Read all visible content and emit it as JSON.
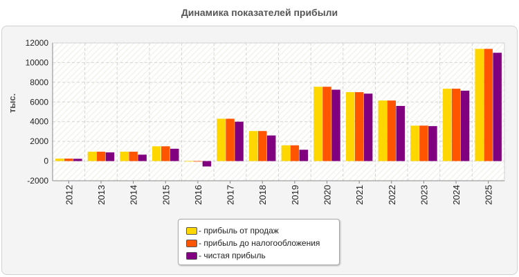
{
  "chart_data": {
    "type": "bar",
    "title": "Динамика показателей прибыли",
    "ylabel": "тыс.",
    "xlabel": "",
    "ylim": [
      -2000,
      12000
    ],
    "yticks": [
      -2000,
      0,
      2000,
      4000,
      6000,
      8000,
      10000,
      12000
    ],
    "grid": true,
    "legend_position": "bottom-center",
    "categories": [
      "2012",
      "2013",
      "2014",
      "2015",
      "2016",
      "2017",
      "2018",
      "2019",
      "2020",
      "2021",
      "2022",
      "2023",
      "2024",
      "2025"
    ],
    "series": [
      {
        "name": "- прибыль от продаж",
        "color": "#ffd700",
        "values": [
          250,
          950,
          950,
          1500,
          -50,
          4300,
          3050,
          1600,
          7550,
          7000,
          6150,
          3600,
          7350,
          11400
        ]
      },
      {
        "name": "- прибыль до налогообложения",
        "color": "#ff5500",
        "values": [
          250,
          950,
          950,
          1500,
          -50,
          4300,
          3050,
          1600,
          7550,
          7000,
          6150,
          3600,
          7350,
          11400
        ]
      },
      {
        "name": "- чистая прибыль",
        "color": "#800080",
        "values": [
          230,
          880,
          650,
          1250,
          -550,
          4000,
          2600,
          1150,
          7250,
          6850,
          5600,
          3550,
          7150,
          11000
        ]
      }
    ]
  }
}
